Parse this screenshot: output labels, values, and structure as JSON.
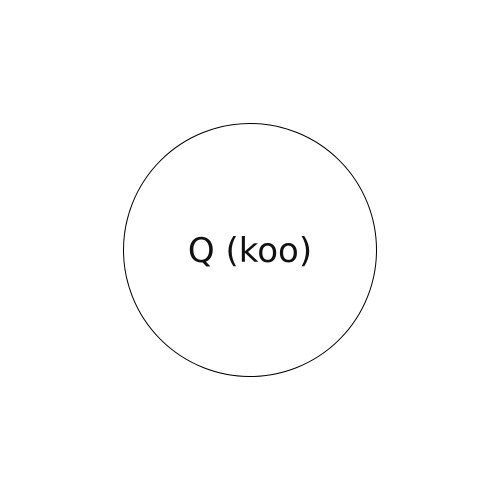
{
  "circle": {
    "label": "Q (koo)",
    "stroke_color": "#000000",
    "fill_color": "#ffffff",
    "text_color": "#111111"
  },
  "background_color": "#ffffff"
}
